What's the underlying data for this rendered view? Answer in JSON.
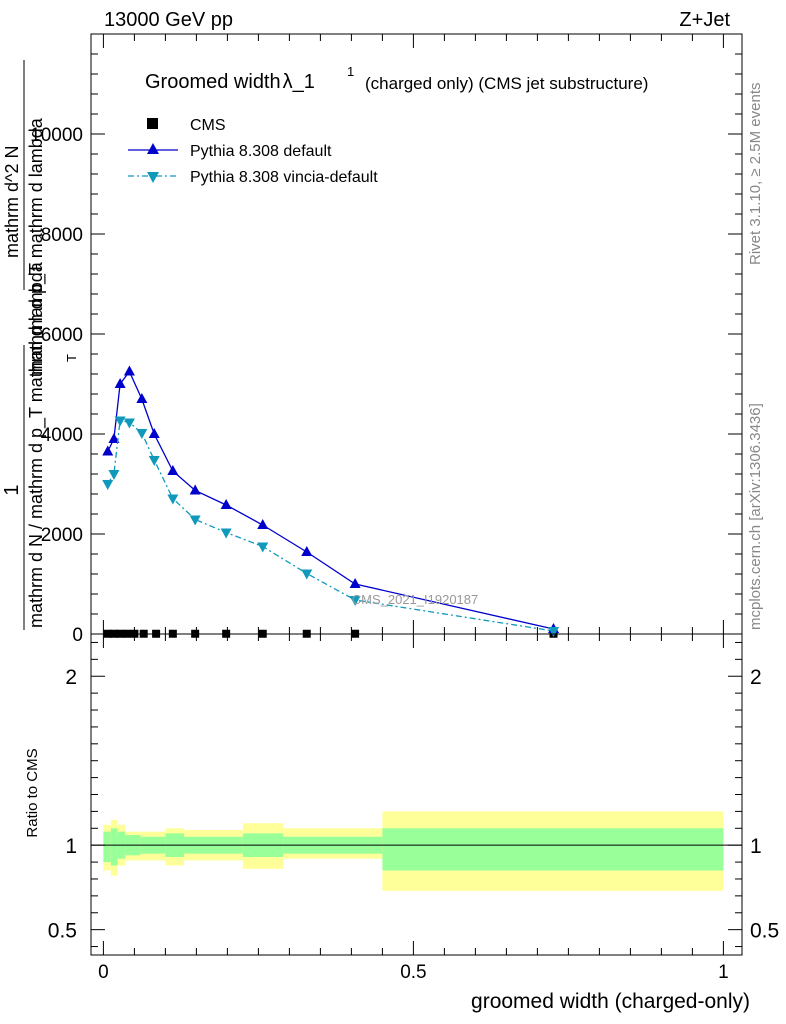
{
  "header": {
    "energy_label": "13000 GeV pp",
    "process_label": "Z+Jet"
  },
  "side_labels": {
    "rivet_label": "Rivet 3.1.10, ≥ 2.5M events",
    "mcplots_label": "mcplots.cern.ch [arXiv:1306.3436]"
  },
  "colors": {
    "data": "#000000",
    "pythia_default": "#0000cc",
    "pythia_vincia": "#1199bb",
    "band_inner": "#99ff99",
    "band_outer": "#ffff99",
    "watermark": "#999999"
  },
  "chart_data": [
    {
      "type": "line",
      "title_main": "Groomed width",
      "title_symbol": "λ_1",
      "title_superscript": "1",
      "title_suffix": "(charged only) (CMS jet substructure)",
      "ylabel_fraction_top": "1",
      "ylabel_lower": "mathrm d N / mathrm d p_T mathrm d lambda",
      "ylabel_upper": "mathrm d^2 N",
      "ylabel_upper_denominator": "mathrm d p_T mathrm d lambda",
      "ylabel_subscript": "T",
      "watermark": "CMS_2021_I1920187",
      "ylim": [
        0,
        12000
      ],
      "xlim": [
        -0.02,
        1.03
      ],
      "yticks": [
        {
          "value": 0,
          "label": "0"
        },
        {
          "value": 2000,
          "label": "2000"
        },
        {
          "value": 4000,
          "label": "4000"
        },
        {
          "value": 6000,
          "label": "6000"
        },
        {
          "value": 8000,
          "label": "8000"
        },
        {
          "value": 10000,
          "label": "10000"
        }
      ],
      "legend_placement": "top-left",
      "series": [
        {
          "name": "CMS",
          "marker": "square",
          "x": [
            0.007,
            0.017,
            0.027,
            0.038,
            0.05,
            0.065,
            0.085,
            0.112,
            0.148,
            0.198,
            0.257,
            0.328,
            0.406,
            0.726
          ],
          "y": [
            5,
            5,
            5,
            5,
            5,
            5,
            5,
            5,
            5,
            5,
            5,
            5,
            5,
            5
          ]
        },
        {
          "name": "Pythia 8.308 default",
          "marker": "triangle-up",
          "line": "solid",
          "x": [
            0.007,
            0.017,
            0.027,
            0.042,
            0.062,
            0.082,
            0.112,
            0.148,
            0.198,
            0.257,
            0.328,
            0.406,
            0.726
          ],
          "y": [
            3650,
            3900,
            5000,
            5250,
            4700,
            4000,
            3260,
            2870,
            2580,
            2180,
            1640,
            1000,
            100
          ]
        },
        {
          "name": "Pythia 8.308 vincia-default",
          "marker": "triangle-down",
          "line": "dash-dot",
          "x": [
            0.007,
            0.017,
            0.027,
            0.042,
            0.062,
            0.082,
            0.112,
            0.148,
            0.198,
            0.257,
            0.328,
            0.406,
            0.726
          ],
          "y": [
            3000,
            3200,
            4270,
            4230,
            4020,
            3480,
            2710,
            2290,
            2030,
            1750,
            1210,
            680,
            60
          ]
        }
      ]
    },
    {
      "type": "area",
      "ylabel": "Ratio to CMS",
      "xlabel": "groomed width (charged-only)",
      "ylim": [
        0.35,
        2.25
      ],
      "xlim": [
        -0.02,
        1.03
      ],
      "yticks": [
        {
          "value": 0.5,
          "label": "0.5"
        },
        {
          "value": 1,
          "label": "1"
        },
        {
          "value": 2,
          "label": "2"
        }
      ],
      "xticks": [
        {
          "value": 0,
          "label": "0"
        },
        {
          "value": 0.5,
          "label": "0.5"
        },
        {
          "value": 1,
          "label": "1"
        }
      ],
      "bins": [
        {
          "lo": 0.0,
          "hi": 0.012,
          "inner_lo": 0.9,
          "inner_hi": 1.08,
          "outer_lo": 0.85,
          "outer_hi": 1.12
        },
        {
          "lo": 0.012,
          "hi": 0.023,
          "inner_lo": 0.88,
          "inner_hi": 1.1,
          "outer_lo": 0.82,
          "outer_hi": 1.15
        },
        {
          "lo": 0.023,
          "hi": 0.035,
          "inner_lo": 0.92,
          "inner_hi": 1.08,
          "outer_lo": 0.88,
          "outer_hi": 1.12
        },
        {
          "lo": 0.035,
          "hi": 0.06,
          "inner_lo": 0.94,
          "inner_hi": 1.06,
          "outer_lo": 0.91,
          "outer_hi": 1.08
        },
        {
          "lo": 0.06,
          "hi": 0.1,
          "inner_lo": 0.95,
          "inner_hi": 1.05,
          "outer_lo": 0.91,
          "outer_hi": 1.08
        },
        {
          "lo": 0.1,
          "hi": 0.13,
          "inner_lo": 0.93,
          "inner_hi": 1.07,
          "outer_lo": 0.88,
          "outer_hi": 1.1
        },
        {
          "lo": 0.13,
          "hi": 0.225,
          "inner_lo": 0.95,
          "inner_hi": 1.05,
          "outer_lo": 0.91,
          "outer_hi": 1.09
        },
        {
          "lo": 0.225,
          "hi": 0.29,
          "inner_lo": 0.93,
          "inner_hi": 1.07,
          "outer_lo": 0.86,
          "outer_hi": 1.13
        },
        {
          "lo": 0.29,
          "hi": 0.45,
          "inner_lo": 0.95,
          "inner_hi": 1.05,
          "outer_lo": 0.92,
          "outer_hi": 1.1
        },
        {
          "lo": 0.45,
          "hi": 1.0,
          "inner_lo": 0.85,
          "inner_hi": 1.1,
          "outer_lo": 0.73,
          "outer_hi": 1.2
        }
      ]
    }
  ]
}
